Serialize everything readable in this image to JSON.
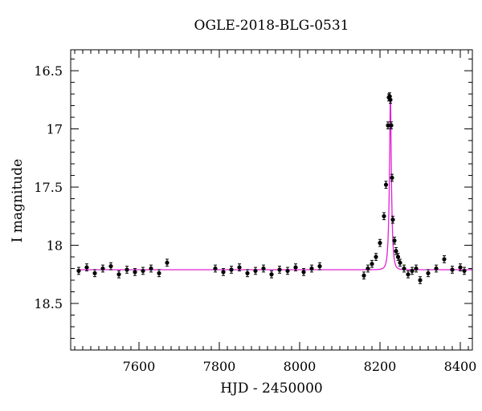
{
  "chart_data": {
    "type": "scatter",
    "title": "OGLE-2018-BLG-0531",
    "xlabel": "HJD - 2450000",
    "ylabel": "I magnitude",
    "xlim": [
      7430,
      8430
    ],
    "ylim": [
      18.9,
      16.32
    ],
    "y_axis_inverted": true,
    "x_ticks": [
      7600,
      7800,
      8000,
      8200,
      8400
    ],
    "y_ticks": [
      16.5,
      17,
      17.5,
      18,
      18.5
    ],
    "x_tick_labels": [
      "7600",
      "7800",
      "8000",
      "8200",
      "8400"
    ],
    "y_tick_labels": [
      "16.5",
      "17",
      "17.5",
      "18",
      "18.5"
    ],
    "grid": false,
    "legend": "none",
    "colors": {
      "points": "#000000",
      "model": "#e020d8"
    },
    "model": {
      "baseline_mag": 18.21,
      "peak_time": 8226,
      "peak_mag": 16.71,
      "tE_days": 5.5
    },
    "observing_seasons": [
      [
        7440,
        7670
      ],
      [
        7785,
        8060
      ],
      [
        8160,
        8420
      ]
    ],
    "series": [
      {
        "type": "scatter_with_errorbars",
        "x": [
          7450,
          7470,
          7490,
          7510,
          7530,
          7550,
          7570,
          7590,
          7610,
          7630,
          7650,
          7670,
          7790,
          7810,
          7830,
          7850,
          7870,
          7890,
          7910,
          7930,
          7950,
          7970,
          7990,
          8010,
          8030,
          8050,
          8160,
          8170,
          8180,
          8190,
          8200,
          8210,
          8215,
          8220,
          8222,
          8224,
          8226,
          8228,
          8230,
          8232,
          8236,
          8240,
          8245,
          8250,
          8260,
          8270,
          8280,
          8290,
          8300,
          8320,
          8340,
          8360,
          8380,
          8400,
          8410
        ],
        "y": [
          18.22,
          18.19,
          18.24,
          18.2,
          18.18,
          18.25,
          18.21,
          18.23,
          18.22,
          18.2,
          18.24,
          18.15,
          18.2,
          18.23,
          18.21,
          18.19,
          18.24,
          18.22,
          18.2,
          18.25,
          18.21,
          18.22,
          18.19,
          18.23,
          18.2,
          18.18,
          18.26,
          18.2,
          18.16,
          18.1,
          17.98,
          17.75,
          17.48,
          16.97,
          16.73,
          16.72,
          16.75,
          16.97,
          17.42,
          17.78,
          17.96,
          18.05,
          18.1,
          18.15,
          18.2,
          18.25,
          18.22,
          18.2,
          18.3,
          18.24,
          18.2,
          18.12,
          18.21,
          18.19,
          18.22
        ],
        "y_error": 0.03
      }
    ]
  }
}
